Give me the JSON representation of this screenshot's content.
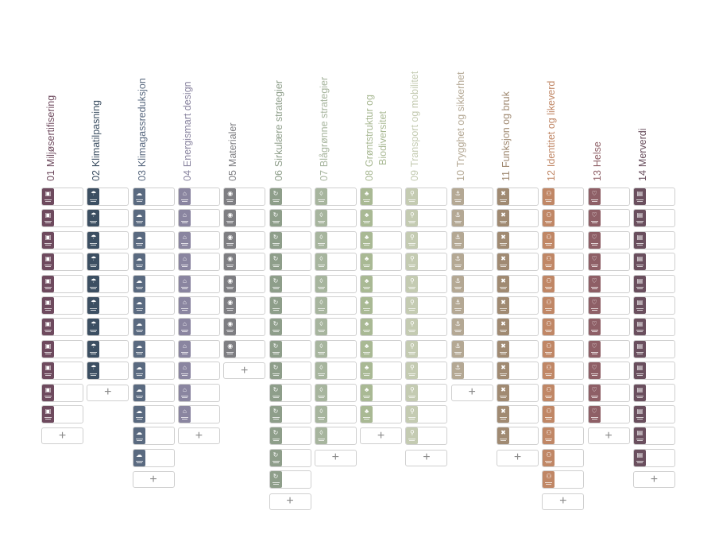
{
  "add_glyph": "+",
  "columns": [
    {
      "key": "miljosertifisering",
      "num": "01",
      "title": "Miljøsertifisering",
      "title2": "",
      "color": "#6e4a5e",
      "icon": "certificate-icon",
      "glyph": "▣",
      "cards": 11
    },
    {
      "key": "klimatilpasning",
      "num": "02",
      "title": "Klimatilpasning",
      "title2": "",
      "color": "#3c4f62",
      "icon": "climate-adaptation-icon",
      "glyph": "☂",
      "cards": 9
    },
    {
      "key": "klimagassreduksjon",
      "num": "03",
      "title": "Klimagassreduksjon",
      "title2": "",
      "color": "#5a6a80",
      "icon": "cloud-reduction-icon",
      "glyph": "☁",
      "cards": 13
    },
    {
      "key": "energismart-design",
      "num": "04",
      "title": "Energismart design",
      "title2": "",
      "color": "#8a85a0",
      "icon": "energy-house-icon",
      "glyph": "⌂",
      "cards": 11
    },
    {
      "key": "materialer",
      "num": "05",
      "title": "Materialer",
      "title2": "",
      "color": "#7e7e82",
      "icon": "materials-icon",
      "glyph": "◉",
      "cards": 8
    },
    {
      "key": "sirkulaere-strategier",
      "num": "06",
      "title": "Sirkulære strategier",
      "title2": "",
      "color": "#8e9e8a",
      "icon": "circular-icon",
      "glyph": "↻",
      "cards": 14
    },
    {
      "key": "blagronne-strategier",
      "num": "07",
      "title": "Blågrønne strategier",
      "title2": "",
      "color": "#a7b59e",
      "icon": "water-drop-icon",
      "glyph": "◊",
      "cards": 12
    },
    {
      "key": "gronnstruktur",
      "num": "08",
      "title": "Grøntstruktur og",
      "title2": "Biodiversitet",
      "color": "#a9b994",
      "icon": "leaf-icon",
      "glyph": "♣",
      "cards": 11
    },
    {
      "key": "transport",
      "num": "09",
      "title": "Transport og mobilitet",
      "title2": "",
      "color": "#c4cbb2",
      "icon": "transport-icon",
      "glyph": "⚲",
      "cards": 12
    },
    {
      "key": "trygghet",
      "num": "10",
      "title": "Trygghet og sikkerhet",
      "title2": "",
      "color": "#b4a894",
      "icon": "anchor-icon",
      "glyph": "⚓",
      "cards": 9
    },
    {
      "key": "funksjon",
      "num": "11",
      "title": "Funksjon og bruk",
      "title2": "",
      "color": "#a08a72",
      "icon": "tools-icon",
      "glyph": "✖",
      "cards": 12
    },
    {
      "key": "identitet",
      "num": "12",
      "title": "Identitet og likeverd",
      "title2": "",
      "color": "#c08766",
      "icon": "people-icon",
      "glyph": "⚇",
      "cards": 14
    },
    {
      "key": "helse",
      "num": "13",
      "title": "Helse",
      "title2": "",
      "color": "#8e5f66",
      "icon": "heart-icon",
      "glyph": "♡",
      "cards": 11
    },
    {
      "key": "merverdi",
      "num": "14",
      "title": "Merverdi",
      "title2": "",
      "color": "#6a4f5e",
      "icon": "chart-icon",
      "glyph": "▤",
      "cards": 13
    }
  ]
}
